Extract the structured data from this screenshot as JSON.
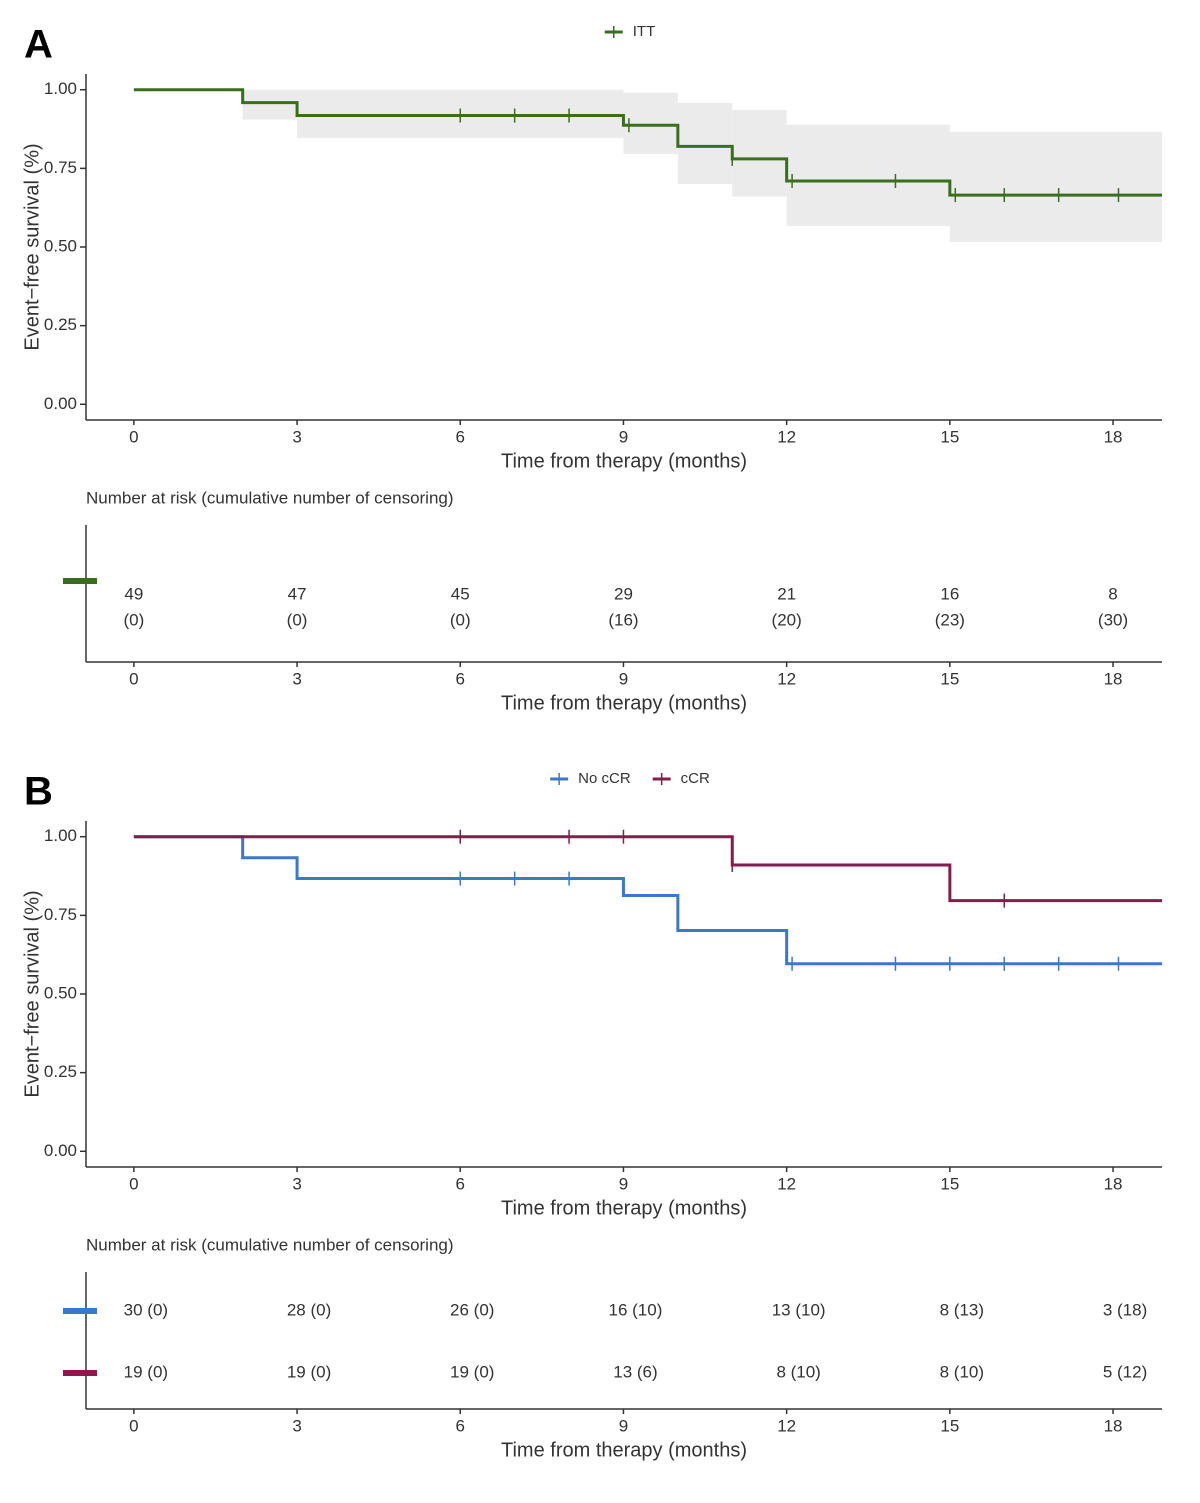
{
  "chart_data": [
    {
      "type": "step",
      "label": "A",
      "x_label": "Time from therapy (months)",
      "y_label": "Event−free survival (%)",
      "xlim": [
        -0.88,
        18.9
      ],
      "ylim": [
        -0.05,
        1.05
      ],
      "xticks": [
        0,
        3,
        6,
        9,
        12,
        15,
        18
      ],
      "yticks": [
        {
          "value": 0,
          "label": "0.00"
        },
        {
          "value": 0.25,
          "label": "0.25"
        },
        {
          "value": 0.5,
          "label": "0.50"
        },
        {
          "value": 0.75,
          "label": "0.75"
        },
        {
          "value": 1,
          "label": "1.00"
        }
      ],
      "series": [
        {
          "name": "ITT",
          "color": "#3a6e1f",
          "x": [
            0,
            2,
            3,
            9,
            10,
            11,
            12,
            15
          ],
          "values": [
            1,
            0.959,
            0.918,
            0.887,
            0.82,
            0.78,
            0.71,
            0.665
          ],
          "lower": [
            null,
            0.905,
            0.847,
            0.796,
            0.7,
            0.66,
            0.567,
            0.516
          ],
          "upper": [
            null,
            1,
            1,
            0.99,
            0.958,
            0.936,
            0.889,
            0.866
          ],
          "censored": {
            "x": [
              6,
              7,
              8,
              9.1,
              11,
              12.1,
              14,
              15.1,
              16,
              17,
              18.1
            ],
            "values": [
              0.918,
              0.918,
              0.918,
              0.887,
              0.78,
              0.71,
              0.71,
              0.665,
              0.665,
              0.665,
              0.665
            ]
          }
        }
      ],
      "risk_table": {
        "title": "Number at risk (cumulative number of censoring)",
        "rows": [
          {
            "values": [
              49,
              47,
              45,
              29,
              21,
              16,
              8
            ],
            "censored": [
              0,
              0,
              0,
              16,
              20,
              23,
              30
            ],
            "censored_labels": [
              "(0)",
              "(0)",
              "(0)",
              "(16)",
              "(20)",
              "(23)",
              "(30)"
            ]
          }
        ]
      }
    },
    {
      "type": "step",
      "label": "B",
      "x_label": "Time from therapy (months)",
      "y_label": "Event−free survival (%)",
      "xlim": [
        -0.88,
        18.9
      ],
      "ylim": [
        -0.05,
        1.05
      ],
      "xticks": [
        0,
        3,
        6,
        9,
        12,
        15,
        18
      ],
      "yticks": [
        {
          "value": 0,
          "label": "0.00"
        },
        {
          "value": 0.25,
          "label": "0.25"
        },
        {
          "value": 0.5,
          "label": "0.50"
        },
        {
          "value": 0.75,
          "label": "0.75"
        },
        {
          "value": 1,
          "label": "1.00"
        }
      ],
      "series": [
        {
          "name": "No cCR",
          "color": "#3a78c9",
          "x": [
            0,
            2,
            3,
            9,
            10,
            12
          ],
          "values": [
            1,
            0.933,
            0.867,
            0.813,
            0.702,
            0.596
          ],
          "censored": {
            "x": [
              6,
              7,
              8,
              12.1,
              14,
              15,
              16,
              17,
              18.1
            ],
            "values": [
              0.867,
              0.867,
              0.867,
              0.596,
              0.596,
              0.596,
              0.596,
              0.596,
              0.596
            ]
          }
        },
        {
          "name": "cCR",
          "color": "#8b1a4a",
          "x": [
            0,
            11,
            15
          ],
          "values": [
            1,
            0.91,
            0.797
          ],
          "censored": {
            "x": [
              6,
              8,
              9,
              11,
              16
            ],
            "values": [
              1,
              1,
              1,
              0.91,
              0.797
            ]
          }
        }
      ],
      "risk_table": {
        "title": "Number at risk (cumulative number of censoring)",
        "rows": [
          {
            "values": [
              30,
              28,
              26,
              16,
              13,
              8,
              3
            ],
            "censored": [
              0,
              0,
              0,
              10,
              10,
              13,
              18
            ],
            "value_labels": [
              "30 (0)",
              "28 (0)",
              "26 (0)",
              "16 (10)",
              "13 (10)",
              "8 (13)",
              "3 (18)"
            ]
          },
          {
            "values": [
              19,
              19,
              19,
              13,
              8,
              8,
              5
            ],
            "censored": [
              0,
              0,
              0,
              6,
              10,
              10,
              12
            ],
            "value_labels": [
              "19 (0)",
              "19 (0)",
              "19 (0)",
              "13 (6)",
              "8 (10)",
              "8 (10)",
              "5 (12)"
            ]
          }
        ]
      }
    }
  ]
}
